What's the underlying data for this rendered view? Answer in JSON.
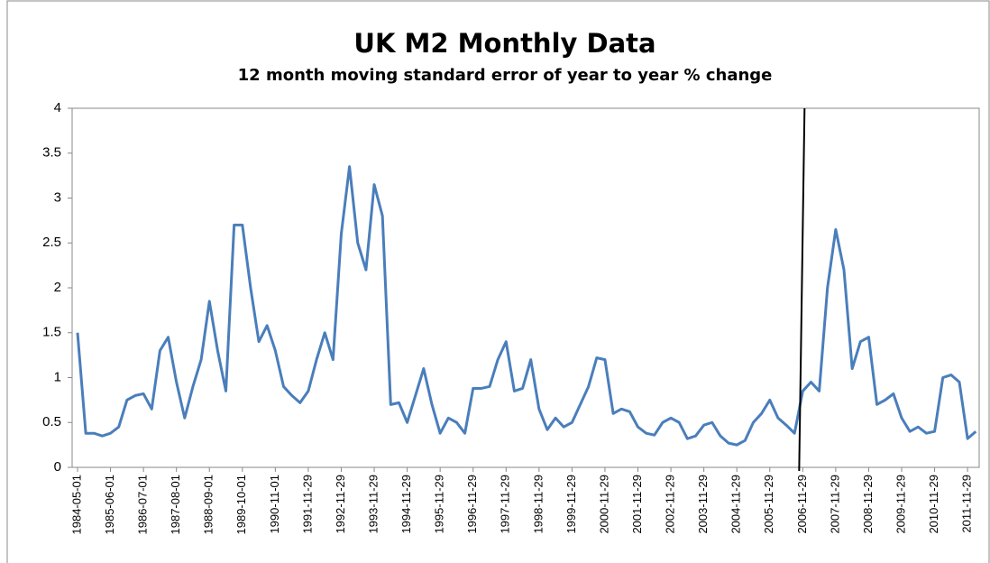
{
  "chart_data": {
    "type": "line",
    "title": "UK M2 Monthly Data",
    "subtitle": "12 month moving standard error of year to year % change",
    "categories": [
      "1984-05-01",
      null,
      null,
      null,
      "1985-06-01",
      null,
      null,
      null,
      "1986-07-01",
      null,
      null,
      null,
      "1987-08-01",
      null,
      null,
      null,
      "1988-09-01",
      null,
      null,
      null,
      "1989-10-01",
      null,
      null,
      null,
      "1990-11-01",
      null,
      null,
      null,
      "1991-11-29",
      null,
      null,
      null,
      "1992-11-29",
      null,
      null,
      null,
      "1993-11-29",
      null,
      null,
      null,
      "1994-11-29",
      null,
      null,
      null,
      "1995-11-29",
      null,
      null,
      null,
      "1996-11-29",
      null,
      null,
      null,
      "1997-11-29",
      null,
      null,
      null,
      "1998-11-29",
      null,
      null,
      null,
      "1999-11-29",
      null,
      null,
      null,
      "2000-11-29",
      null,
      null,
      null,
      "2001-11-29",
      null,
      null,
      null,
      "2002-11-29",
      null,
      null,
      null,
      "2003-11-29",
      null,
      null,
      null,
      "2004-11-29",
      null,
      null,
      null,
      "2005-11-29",
      null,
      null,
      null,
      "2006-11-29",
      null,
      null,
      null,
      "2007-11-29",
      null,
      null,
      null,
      "2008-11-29",
      null,
      null,
      null,
      "2009-11-29",
      null,
      null,
      null,
      "2010-11-29",
      null,
      null,
      null,
      "2011-11-29",
      null
    ],
    "series": [
      {
        "color": "#4a7ebb",
        "values": [
          1.5,
          0.38,
          0.38,
          0.35,
          0.38,
          0.45,
          0.75,
          0.8,
          0.82,
          0.65,
          1.3,
          1.45,
          0.95,
          0.55,
          0.9,
          1.2,
          1.85,
          1.3,
          0.85,
          2.7,
          2.7,
          2.0,
          1.4,
          1.58,
          1.3,
          0.9,
          0.8,
          0.72,
          0.85,
          1.2,
          1.5,
          1.2,
          2.6,
          3.35,
          2.5,
          2.2,
          3.15,
          2.8,
          0.7,
          0.72,
          0.5,
          0.8,
          1.1,
          0.7,
          0.38,
          0.55,
          0.5,
          0.38,
          0.88,
          0.88,
          0.9,
          1.2,
          1.4,
          0.85,
          0.88,
          1.2,
          0.65,
          0.42,
          0.55,
          0.45,
          0.5,
          0.7,
          0.9,
          1.22,
          1.2,
          0.6,
          0.65,
          0.62,
          0.45,
          0.38,
          0.36,
          0.5,
          0.55,
          0.5,
          0.32,
          0.35,
          0.47,
          0.5,
          0.35,
          0.27,
          0.25,
          0.3,
          0.5,
          0.6,
          0.75,
          0.55,
          0.47,
          0.38,
          0.85,
          0.95,
          0.85,
          2.0,
          2.65,
          2.2,
          1.1,
          1.4,
          1.45,
          0.7,
          0.75,
          0.82,
          0.55,
          0.4,
          0.45,
          0.38,
          0.4,
          1.0,
          1.03,
          0.95,
          0.32,
          0.4
        ]
      }
    ],
    "ylim": [
      0,
      4
    ],
    "yticks": [
      0,
      0.5,
      1,
      1.5,
      2,
      2.5,
      3,
      3.5,
      4
    ],
    "vline": {
      "x": "2006-11-29",
      "color": "#000000"
    }
  }
}
